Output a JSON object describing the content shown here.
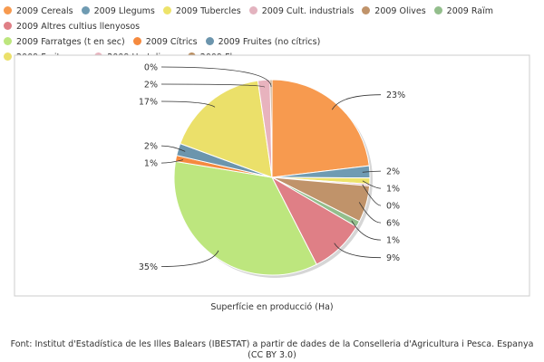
{
  "chart_data": {
    "type": "pie",
    "xlabel": "Superfície en producció (Ha)",
    "source_line1": "Font: Institut d'Estadística de les Illes Balears (IBESTAT) a partir de dades de la Conselleria d'Agricultura i Pesca. Espanya",
    "source_line2": "(CC BY 3.0)",
    "legend_placement": "top-left",
    "categories": [
      "2009 Cereals",
      "2009 Llegums",
      "2009 Tubercles",
      "2009 Cult. industrials",
      "2009 Olives",
      "2009 Raïm",
      "2009 Altres cultius llenyosos",
      "2009 Farratges (t en sec)",
      "2009 Cítrics",
      "2009 Fruites (no cítrics)",
      "2009 Fruits secs",
      "2009 Hortalisses",
      "2009 Flors"
    ],
    "colors": [
      "#f79a4f",
      "#6f9bb2",
      "#ede36a",
      "#e3b3bf",
      "#c0936a",
      "#93be8c",
      "#df7f86",
      "#bde67e",
      "#f58a3f",
      "#6c95ad",
      "#ebe06a",
      "#e8b3be",
      "#b88c5e"
    ],
    "slices": [
      {
        "label": "23%",
        "value": 23
      },
      {
        "label": "2%",
        "value": 2
      },
      {
        "label": "1%",
        "value": 1
      },
      {
        "label": "0%",
        "value": 0.3
      },
      {
        "label": "6%",
        "value": 6
      },
      {
        "label": "1%",
        "value": 1
      },
      {
        "label": "9%",
        "value": 9
      },
      {
        "label": "35%",
        "value": 35
      },
      {
        "label": "1%",
        "value": 1
      },
      {
        "label": "2%",
        "value": 2
      },
      {
        "label": "17%",
        "value": 17
      },
      {
        "label": "2%",
        "value": 2
      },
      {
        "label": "0%",
        "value": 0.3
      }
    ]
  }
}
